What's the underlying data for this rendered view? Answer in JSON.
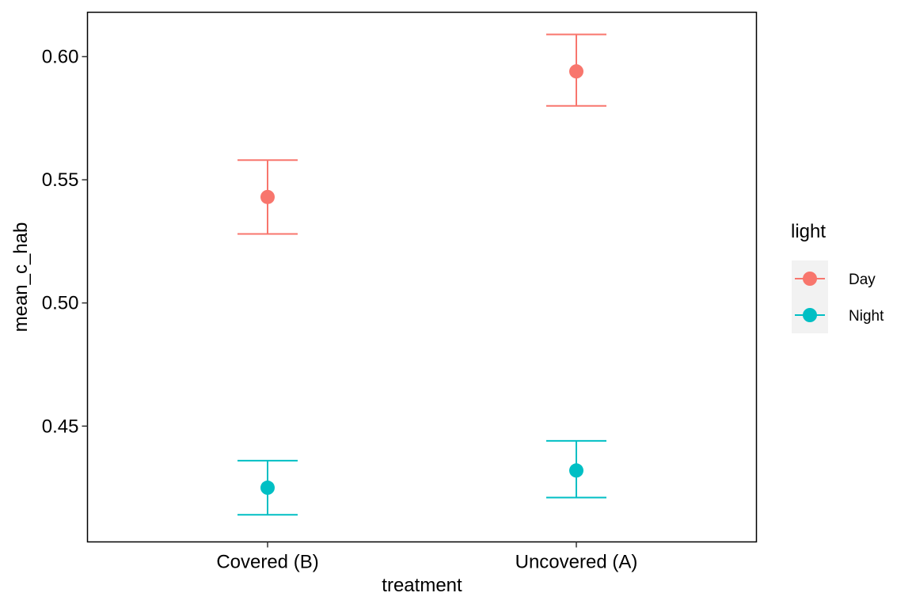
{
  "chart_data": {
    "type": "scatter",
    "subtype": "point-with-errorbars",
    "title": "",
    "xlabel": "treatment",
    "ylabel": "mean_c_hab",
    "categories": [
      "Covered (B)",
      "Uncovered (A)"
    ],
    "ylim": [
      0.403,
      0.618
    ],
    "yticks": [
      0.45,
      0.5,
      0.55,
      0.6
    ],
    "ytick_labels": [
      "0.45",
      "0.50",
      "0.55",
      "0.60"
    ],
    "grid": false,
    "legend": {
      "title": "light",
      "position": "right"
    },
    "series": [
      {
        "name": "Day",
        "color": "#F8766D",
        "values": [
          0.543,
          0.594
        ],
        "lower": [
          0.528,
          0.58
        ],
        "upper": [
          0.558,
          0.609
        ]
      },
      {
        "name": "Night",
        "color": "#00BFC4",
        "values": [
          0.425,
          0.432
        ],
        "lower": [
          0.414,
          0.421
        ],
        "upper": [
          0.436,
          0.444
        ]
      }
    ]
  }
}
